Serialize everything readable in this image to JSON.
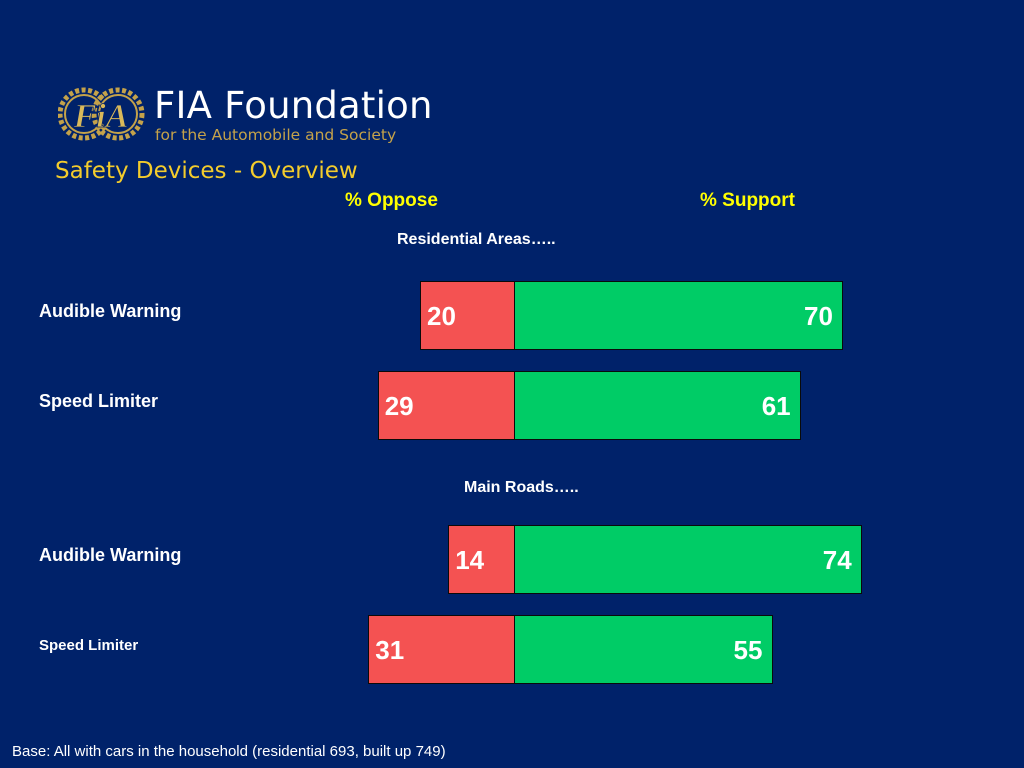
{
  "logo": {
    "emblem_text": "FiA",
    "name": "FIA Foundation",
    "tagline": "for the Automobile and Society"
  },
  "slide_title": "Safety Devices - Overview",
  "headers": {
    "oppose": "% Oppose",
    "support": "% Support"
  },
  "footnote": "Base: All with cars in the household (residential 693, built up 749)",
  "colors": {
    "background": "#00226a",
    "oppose": "#f45252",
    "support": "#00cc66",
    "header": "#ffff00",
    "title": "#f3cc2c",
    "logo_gold": "#c4a24a"
  },
  "chart_data": {
    "type": "bar",
    "orientation": "horizontal-diverging",
    "series": [
      {
        "name": "% Oppose"
      },
      {
        "name": "% Support"
      }
    ],
    "groups": [
      {
        "label": "Residential Areas…..",
        "rows": [
          {
            "category": "Audible Warning",
            "oppose": 20,
            "support": 70
          },
          {
            "category": "Speed Limiter",
            "oppose": 29,
            "support": 61
          }
        ]
      },
      {
        "label": "Main Roads…..",
        "rows": [
          {
            "category": "Audible Warning",
            "oppose": 14,
            "support": 74
          },
          {
            "category": "Speed Limiter",
            "oppose": 31,
            "support": 55
          }
        ]
      }
    ]
  }
}
